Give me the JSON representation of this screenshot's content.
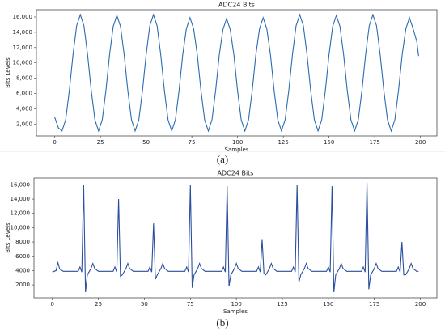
{
  "chart_data": [
    {
      "type": "line",
      "title": "ADC24 Bits",
      "xlabel": "Samples",
      "ylabel": "Bits Levels",
      "caption": "(a)",
      "color": "#2b6cb0",
      "x": [
        0,
        2,
        4,
        6,
        8,
        10,
        12,
        14,
        16,
        18,
        20,
        22,
        24,
        26,
        28,
        30,
        32,
        34,
        36,
        38,
        40,
        42,
        44,
        46,
        48,
        50,
        52,
        54,
        56,
        58,
        60,
        62,
        64,
        66,
        68,
        70,
        72,
        74,
        76,
        78,
        80,
        82,
        84,
        86,
        88,
        90,
        92,
        94,
        96,
        98,
        100,
        102,
        104,
        106,
        108,
        110,
        112,
        114,
        116,
        118,
        120,
        122,
        124,
        126,
        128,
        130,
        132,
        134,
        136,
        138,
        140,
        142,
        144,
        146,
        148,
        150,
        152,
        154,
        156,
        158,
        160,
        162,
        164,
        166,
        168,
        170,
        172,
        174,
        176,
        178,
        180,
        182,
        184,
        186,
        188,
        190,
        192,
        194,
        196,
        198,
        199
      ],
      "values": [
        2900,
        1500,
        1100,
        2550,
        6350,
        11050,
        14850,
        16300,
        14850,
        11050,
        6350,
        2550,
        1100,
        2550,
        6350,
        11050,
        14750,
        16200,
        14750,
        11050,
        6350,
        2550,
        1100,
        2550,
        6350,
        11050,
        14850,
        16300,
        14850,
        11050,
        6350,
        2550,
        1100,
        2550,
        6350,
        11050,
        14450,
        15900,
        14450,
        11050,
        6350,
        2550,
        1100,
        2550,
        6350,
        11050,
        14350,
        15800,
        14350,
        11050,
        6350,
        2550,
        1100,
        2550,
        6350,
        11050,
        14450,
        15900,
        14450,
        11050,
        6350,
        2550,
        1100,
        2550,
        6350,
        11050,
        14850,
        16300,
        14850,
        11050,
        6350,
        2550,
        1100,
        2550,
        6350,
        11050,
        14750,
        16200,
        14750,
        11050,
        6350,
        2550,
        1100,
        2550,
        6350,
        11050,
        14850,
        16300,
        14850,
        11050,
        6350,
        2550,
        1100,
        2550,
        6350,
        11050,
        14450,
        15900,
        14450,
        12800,
        10900
      ],
      "xlim": [
        -10,
        209
      ],
      "xticks": [
        0,
        25,
        50,
        75,
        100,
        125,
        150,
        175,
        200
      ],
      "ylim": [
        450,
        16950
      ],
      "yticks": [
        {
          "value": 2000,
          "label": "2,000"
        },
        {
          "value": 4000,
          "label": "4,000"
        },
        {
          "value": 6000,
          "label": "6,000"
        },
        {
          "value": 8000,
          "label": "8,000"
        },
        {
          "value": 10000,
          "label": "10,000"
        },
        {
          "value": 12000,
          "label": "12,000"
        },
        {
          "value": 14000,
          "label": "14,000"
        },
        {
          "value": 16000,
          "label": "16,000"
        }
      ]
    },
    {
      "type": "line",
      "title": "ADC24 Bits",
      "xlabel": "Samples",
      "ylabel": "Bits Levels",
      "caption": "(b)",
      "color": "#2a4f9e",
      "x": [
        0,
        2,
        3,
        4,
        6,
        14,
        15,
        16,
        17,
        18,
        19,
        21,
        22,
        23,
        25,
        33,
        34,
        35,
        36,
        37,
        38,
        40,
        41,
        42,
        44,
        52,
        53,
        54,
        55,
        56,
        57,
        59,
        60,
        61,
        63,
        72,
        73,
        74,
        75,
        76,
        77,
        79,
        80,
        81,
        83,
        92,
        93,
        94,
        95,
        96,
        97,
        99,
        100,
        101,
        103,
        111,
        112,
        113,
        114,
        115,
        116,
        118,
        119,
        120,
        122,
        130,
        131,
        132,
        133,
        134,
        135,
        137,
        138,
        139,
        141,
        149,
        150,
        151,
        152,
        153,
        154,
        156,
        157,
        158,
        160,
        168,
        169,
        170,
        171,
        172,
        173,
        175,
        176,
        177,
        179,
        187,
        188,
        189,
        190,
        191,
        192,
        194,
        195,
        196,
        198,
        199
      ],
      "values": [
        3800,
        4000,
        5100,
        4200,
        3900,
        3900,
        4500,
        3800,
        16000,
        1000,
        3400,
        4300,
        5000,
        4300,
        3900,
        3900,
        4500,
        3800,
        14000,
        3200,
        3400,
        4300,
        5000,
        4300,
        3900,
        3900,
        4500,
        3800,
        10600,
        2800,
        3400,
        4300,
        5000,
        4300,
        3900,
        3900,
        4500,
        3800,
        16000,
        1600,
        3400,
        4300,
        5000,
        4300,
        3900,
        3900,
        4500,
        3800,
        15800,
        1800,
        3400,
        4300,
        5000,
        4300,
        3900,
        3900,
        4500,
        3800,
        8400,
        3600,
        3400,
        4300,
        5000,
        4300,
        3900,
        3900,
        4500,
        3800,
        16000,
        2400,
        3400,
        4300,
        5000,
        4300,
        3900,
        3900,
        4500,
        3800,
        15800,
        1000,
        3400,
        4300,
        5000,
        4300,
        3900,
        3900,
        4500,
        3800,
        16300,
        1400,
        3400,
        4300,
        5000,
        4300,
        3900,
        3900,
        4500,
        3800,
        8000,
        3400,
        3400,
        4300,
        5000,
        4300,
        3900,
        3900
      ],
      "xlim": [
        -10,
        209
      ],
      "xticks": [
        0,
        25,
        50,
        75,
        100,
        125,
        150,
        175,
        200
      ],
      "ylim": [
        200,
        16950
      ],
      "yticks": [
        {
          "value": 2000,
          "label": "2000"
        },
        {
          "value": 4000,
          "label": "4000"
        },
        {
          "value": 6000,
          "label": "6000"
        },
        {
          "value": 8000,
          "label": "8000"
        },
        {
          "value": 10000,
          "label": "10,000"
        },
        {
          "value": 12000,
          "label": "12,000"
        },
        {
          "value": 14000,
          "label": "14,000"
        },
        {
          "value": 16000,
          "label": "16,000"
        }
      ]
    }
  ]
}
